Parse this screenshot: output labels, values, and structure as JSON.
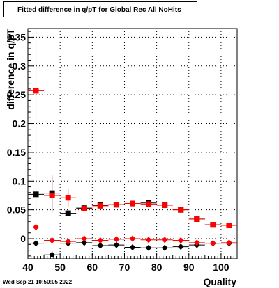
{
  "title": "Fitted difference in q/pT for Global Rec All NoHits",
  "timestamp": "Wed Sep 21 10:50:05 2022",
  "chart_data": {
    "type": "scatter",
    "title": "Fitted difference in q/pT for Global Rec All NoHits",
    "xlabel": "Quality",
    "ylabel": "difference in q/pT",
    "xlim": [
      40,
      105
    ],
    "ylim": [
      -0.035,
      0.365
    ],
    "xticks": [
      "40",
      "50",
      "60",
      "70",
      "80",
      "90",
      "100"
    ],
    "yticks": [
      "0",
      "0.05",
      "0.1",
      "0.15",
      "0.2",
      "0.25",
      "0.3",
      "0.35"
    ],
    "grid": true,
    "series": [
      {
        "marker": "square",
        "color": "#000000",
        "points": [
          {
            "x": 42.5,
            "y": 0.077,
            "xerr": 2.5,
            "yerr": 0.005
          },
          {
            "x": 47.5,
            "y": 0.079,
            "xerr": 2.5,
            "yerr": 0.032
          },
          {
            "x": 52.5,
            "y": 0.044,
            "xerr": 2.5,
            "yerr": 0.004
          },
          {
            "x": 57.5,
            "y": 0.053,
            "xerr": 2.5,
            "yerr": 0.002
          },
          {
            "x": 62.5,
            "y": 0.058,
            "xerr": 2.5,
            "yerr": 0.002
          },
          {
            "x": 67.5,
            "y": 0.059,
            "xerr": 2.5,
            "yerr": 0.002
          },
          {
            "x": 72.5,
            "y": 0.061,
            "xerr": 2.5,
            "yerr": 0.002
          },
          {
            "x": 77.5,
            "y": 0.062,
            "xerr": 2.5,
            "yerr": 0.002
          },
          {
            "x": 82.5,
            "y": 0.058,
            "xerr": 2.5,
            "yerr": 0.002
          },
          {
            "x": 87.5,
            "y": 0.05,
            "xerr": 2.5,
            "yerr": 0.002
          },
          {
            "x": 92.5,
            "y": 0.034,
            "xerr": 2.5,
            "yerr": 0.002
          },
          {
            "x": 97.5,
            "y": 0.024,
            "xerr": 2.5,
            "yerr": 0.002
          },
          {
            "x": 102.5,
            "y": 0.023,
            "xerr": 2.5,
            "yerr": 0.002
          }
        ]
      },
      {
        "marker": "square",
        "color": "#ff0000",
        "points": [
          {
            "x": 42.5,
            "y": 0.257,
            "xerr": 2.5,
            "yerr": 0.22
          },
          {
            "x": 47.5,
            "y": 0.075,
            "xerr": 2.5,
            "yerr": 0.03
          },
          {
            "x": 52.5,
            "y": 0.071,
            "xerr": 2.5,
            "yerr": 0.015
          },
          {
            "x": 57.5,
            "y": 0.052,
            "xerr": 2.5,
            "yerr": 0.004
          },
          {
            "x": 62.5,
            "y": 0.057,
            "xerr": 2.5,
            "yerr": 0.002
          },
          {
            "x": 67.5,
            "y": 0.059,
            "xerr": 2.5,
            "yerr": 0.002
          },
          {
            "x": 72.5,
            "y": 0.061,
            "xerr": 2.5,
            "yerr": 0.002
          },
          {
            "x": 77.5,
            "y": 0.06,
            "xerr": 2.5,
            "yerr": 0.002
          },
          {
            "x": 82.5,
            "y": 0.058,
            "xerr": 2.5,
            "yerr": 0.002
          },
          {
            "x": 87.5,
            "y": 0.05,
            "xerr": 2.5,
            "yerr": 0.002
          },
          {
            "x": 92.5,
            "y": 0.034,
            "xerr": 2.5,
            "yerr": 0.002
          },
          {
            "x": 97.5,
            "y": 0.024,
            "xerr": 2.5,
            "yerr": 0.002
          },
          {
            "x": 102.5,
            "y": 0.023,
            "xerr": 2.5,
            "yerr": 0.002
          }
        ]
      },
      {
        "marker": "diamond",
        "color": "#000000",
        "points": [
          {
            "x": 42.5,
            "y": -0.008,
            "xerr": 2.5,
            "yerr": 0.003
          },
          {
            "x": 47.5,
            "y": -0.028,
            "xerr": 2.5,
            "yerr": 0.006
          },
          {
            "x": 52.5,
            "y": -0.008,
            "xerr": 2.5,
            "yerr": 0.002
          },
          {
            "x": 57.5,
            "y": -0.007,
            "xerr": 2.5,
            "yerr": 0.002
          },
          {
            "x": 62.5,
            "y": -0.012,
            "xerr": 2.5,
            "yerr": 0.002
          },
          {
            "x": 67.5,
            "y": -0.011,
            "xerr": 2.5,
            "yerr": 0.002
          },
          {
            "x": 72.5,
            "y": -0.015,
            "xerr": 2.5,
            "yerr": 0.002
          },
          {
            "x": 77.5,
            "y": -0.016,
            "xerr": 2.5,
            "yerr": 0.002
          },
          {
            "x": 82.5,
            "y": -0.016,
            "xerr": 2.5,
            "yerr": 0.002
          },
          {
            "x": 87.5,
            "y": -0.014,
            "xerr": 2.5,
            "yerr": 0.002
          },
          {
            "x": 92.5,
            "y": -0.011,
            "xerr": 2.5,
            "yerr": 0.002
          },
          {
            "x": 97.5,
            "y": -0.008,
            "xerr": 2.5,
            "yerr": 0.002
          },
          {
            "x": 102.5,
            "y": -0.008,
            "xerr": 2.5,
            "yerr": 0.002
          }
        ]
      },
      {
        "marker": "diamond",
        "color": "#ff0000",
        "points": [
          {
            "x": 42.5,
            "y": 0.02,
            "xerr": 2.5,
            "yerr": 0.005
          },
          {
            "x": 47.5,
            "y": -0.003,
            "xerr": 2.5,
            "yerr": 0.005
          },
          {
            "x": 52.5,
            "y": -0.005,
            "xerr": 2.5,
            "yerr": 0.003
          },
          {
            "x": 57.5,
            "y": 0.0,
            "xerr": 2.5,
            "yerr": 0.002
          },
          {
            "x": 62.5,
            "y": -0.003,
            "xerr": 2.5,
            "yerr": 0.002
          },
          {
            "x": 67.5,
            "y": -0.001,
            "xerr": 2.5,
            "yerr": 0.002
          },
          {
            "x": 72.5,
            "y": 0.0,
            "xerr": 2.5,
            "yerr": 0.002
          },
          {
            "x": 77.5,
            "y": -0.002,
            "xerr": 2.5,
            "yerr": 0.002
          },
          {
            "x": 82.5,
            "y": -0.002,
            "xerr": 2.5,
            "yerr": 0.002
          },
          {
            "x": 87.5,
            "y": -0.003,
            "xerr": 2.5,
            "yerr": 0.002
          },
          {
            "x": 92.5,
            "y": -0.007,
            "xerr": 2.5,
            "yerr": 0.002
          },
          {
            "x": 97.5,
            "y": -0.008,
            "xerr": 2.5,
            "yerr": 0.002
          },
          {
            "x": 102.5,
            "y": -0.007,
            "xerr": 2.5,
            "yerr": 0.002
          }
        ]
      }
    ]
  }
}
